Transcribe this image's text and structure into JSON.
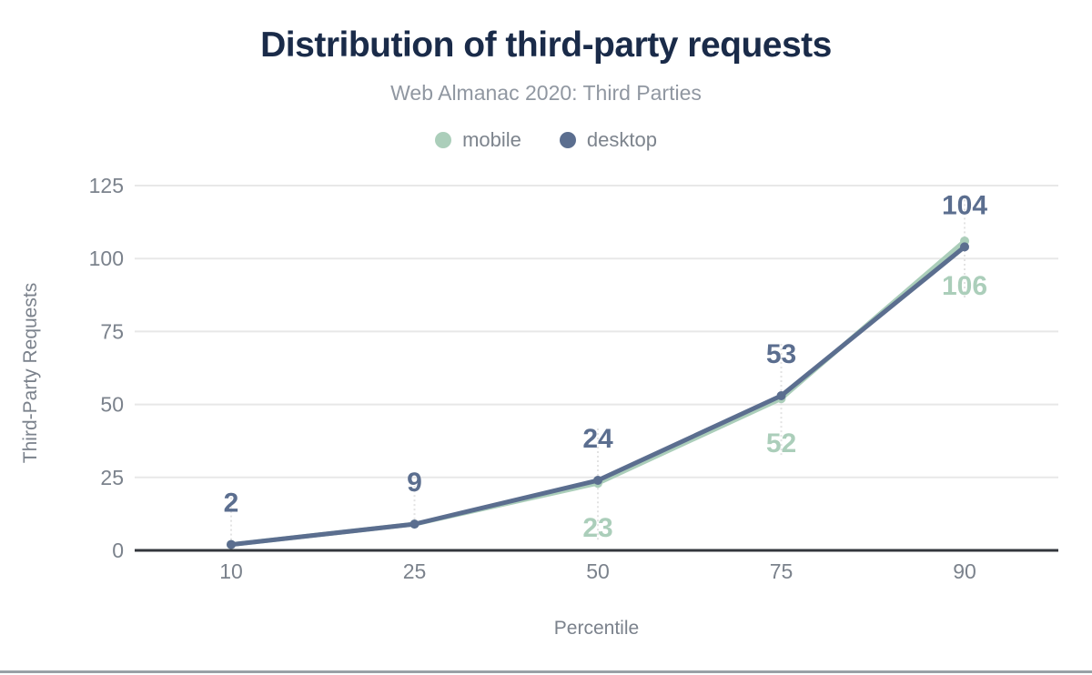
{
  "header": {
    "title": "Distribution of third-party requests",
    "title_color": "#1a2b49",
    "subtitle": "Web Almanac 2020: Third Parties",
    "subtitle_color": "#9097a1"
  },
  "chart_data": {
    "type": "line",
    "title": "Distribution of third-party requests",
    "subtitle": "Web Almanac 2020: Third Parties",
    "x": [
      10,
      25,
      50,
      75,
      90
    ],
    "xlabel": "Percentile",
    "ylabel": "Third-Party Requests",
    "ylim": [
      0,
      125
    ],
    "yticks": [
      0,
      25,
      50,
      75,
      100,
      125
    ],
    "grid": true,
    "legend_position": "top",
    "series": [
      {
        "name": "mobile",
        "color": "#abceba",
        "values": [
          2,
          9,
          23,
          52,
          106
        ],
        "point_labels": [
          null,
          null,
          "23",
          "52",
          "106"
        ],
        "label_side": "below"
      },
      {
        "name": "desktop",
        "color": "#5b6e8f",
        "values": [
          2,
          9,
          24,
          53,
          104
        ],
        "point_labels": [
          "2",
          "9",
          "24",
          "53",
          "104"
        ],
        "label_side": "above"
      }
    ],
    "colors": {
      "axis_line": "#33373d",
      "gridline": "#e8e8e8",
      "tick_label": "#7b828c",
      "leader_line": "#e3e3e3",
      "bottom_divider": "#9aa0a6"
    }
  }
}
